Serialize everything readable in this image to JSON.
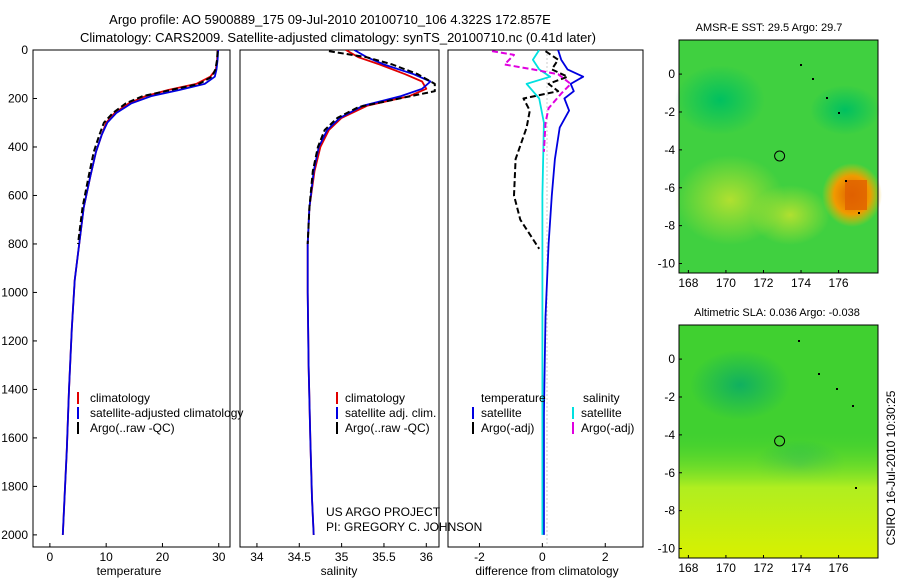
{
  "figure": {
    "title_line1": "Argo profile: AO 5900889_175 09-Jul-2010 20100710_106 4.322S 172.857E",
    "title_line2": "Climatology: CARS2009. Satellite-adjusted climatology: synTS_20100710.nc (0.41d later)",
    "project_line1": "US ARGO PROJECT",
    "project_line2": "PI: GREGORY C. JOHNSON",
    "side_stamp": "CSIRO 16-Jul-2010 10:30:25"
  },
  "colors": {
    "climatology": "#e00000",
    "satellite": "#0000e0",
    "argo": "#000000",
    "sat_diff_salinity": "#00e0e0",
    "argo_diff_salinity": "#e000e0"
  },
  "chart_data": [
    {
      "type": "line",
      "id": "temperature",
      "xlabel": "temperature",
      "ylabel": "",
      "xlim": [
        -3,
        32
      ],
      "ylim": [
        2050,
        0
      ],
      "xticks": [
        0,
        10,
        20,
        30
      ],
      "xtick_labels": [
        "0",
        "10",
        "20",
        "30"
      ],
      "yticks": [
        0,
        200,
        400,
        600,
        800,
        1000,
        1200,
        1400,
        1600,
        1800,
        2000
      ],
      "ytick_labels": [
        "0",
        "200",
        "400",
        "600",
        "800",
        "1000",
        "1200",
        "1400",
        "1600",
        "1800",
        "2000"
      ],
      "legend": [
        "climatology",
        "satellite-adjusted climatology",
        "Argo(..raw -QC)"
      ],
      "series": [
        {
          "name": "climatology",
          "color": "#e00000",
          "x": [
            29.8,
            29.7,
            29.5,
            28.5,
            26,
            21,
            17,
            14,
            11.5,
            10,
            9.2,
            8.2,
            7.2,
            6.0,
            5.2,
            4.4,
            3.9,
            3.4,
            3.0,
            2.6,
            2.3
          ],
          "y": [
            0,
            40,
            80,
            110,
            140,
            165,
            190,
            220,
            260,
            300,
            350,
            420,
            520,
            650,
            800,
            950,
            1150,
            1400,
            1650,
            1850,
            2000
          ]
        },
        {
          "name": "satellite-adjusted climatology",
          "color": "#0000e0",
          "x": [
            29.9,
            29.8,
            29.6,
            29.3,
            27.5,
            23,
            18,
            14.5,
            11.8,
            10.2,
            9.2,
            8.2,
            7.2,
            6.0,
            5.2,
            4.4,
            3.9,
            3.4,
            3.0,
            2.6,
            2.3
          ],
          "y": [
            0,
            40,
            80,
            110,
            140,
            165,
            190,
            220,
            260,
            300,
            350,
            420,
            520,
            650,
            800,
            950,
            1150,
            1400,
            1650,
            1850,
            2000
          ]
        },
        {
          "name": "Argo(..raw -QC)",
          "color": "#000000",
          "dash": true,
          "x": [
            29.8,
            29.7,
            29.4,
            28.8,
            26.5,
            21.5,
            16.5,
            13.5,
            11.2,
            9.6,
            8.8,
            7.8,
            6.9,
            5.8,
            5.0
          ],
          "y": [
            5,
            40,
            80,
            110,
            140,
            165,
            190,
            220,
            260,
            300,
            350,
            420,
            520,
            650,
            800
          ]
        }
      ]
    },
    {
      "type": "line",
      "id": "salinity",
      "xlabel": "salinity",
      "xlim": [
        33.8,
        36.15
      ],
      "ylim": [
        2050,
        0
      ],
      "xticks": [
        34,
        34.5,
        35,
        35.5,
        36
      ],
      "xtick_labels": [
        "34",
        "34.5",
        "35",
        "35.5",
        "36"
      ],
      "legend": [
        "climatology",
        "satellite adj. clim.",
        "Argo(..raw -QC)"
      ],
      "series": [
        {
          "name": "climatology",
          "color": "#e00000",
          "x": [
            35.05,
            35.2,
            35.45,
            35.75,
            35.95,
            36.0,
            35.8,
            35.3,
            35.0,
            34.85,
            34.75,
            34.68,
            34.62,
            34.6,
            34.6,
            34.61,
            34.63,
            34.65,
            34.67
          ],
          "y": [
            0,
            30,
            60,
            100,
            130,
            160,
            190,
            230,
            280,
            330,
            400,
            500,
            650,
            800,
            1000,
            1300,
            1600,
            1850,
            2000
          ]
        },
        {
          "name": "satellite adj. clim.",
          "color": "#0000e0",
          "x": [
            35.15,
            35.3,
            35.5,
            35.85,
            36.05,
            35.95,
            35.7,
            35.25,
            34.98,
            34.83,
            34.73,
            34.67,
            34.62,
            34.6,
            34.6,
            34.61,
            34.63,
            34.65,
            34.67
          ],
          "y": [
            0,
            30,
            60,
            100,
            130,
            160,
            190,
            230,
            280,
            330,
            400,
            500,
            650,
            800,
            1000,
            1300,
            1600,
            1850,
            2000
          ]
        },
        {
          "name": "Argo(..raw -QC)",
          "color": "#000000",
          "dash": true,
          "x": [
            34.85,
            35.3,
            35.6,
            35.9,
            36.1,
            36.1,
            35.75,
            35.2,
            34.95,
            34.8,
            34.72,
            34.66,
            34.62,
            34.6
          ],
          "y": [
            5,
            30,
            60,
            100,
            140,
            170,
            195,
            235,
            280,
            330,
            400,
            500,
            650,
            800
          ]
        }
      ]
    },
    {
      "type": "line",
      "id": "difference",
      "xlabel": "difference from climatology",
      "xlim": [
        -3,
        3.2
      ],
      "ylim": [
        2050,
        0
      ],
      "xticks": [
        -2,
        0,
        2
      ],
      "xtick_labels": [
        "-2",
        "0",
        "2"
      ],
      "legend_header_left": "temperature",
      "legend_header_right": "salinity",
      "legend_left": [
        "satellite",
        "Argo(-adj)"
      ],
      "legend_right": [
        "satellite",
        "Argo(-adj)"
      ],
      "series": [
        {
          "name": "temperature satellite",
          "color": "#0000e0",
          "x": [
            0.5,
            0.6,
            0.8,
            1.3,
            0.9,
            1.0,
            0.7,
            0.85,
            0.55,
            0.4,
            0.3,
            0.2,
            0.1,
            0.05,
            0.05
          ],
          "y": [
            0,
            40,
            80,
            110,
            140,
            170,
            200,
            250,
            320,
            450,
            600,
            800,
            1100,
            1500,
            2000
          ]
        },
        {
          "name": "temperature Argo(-adj)",
          "color": "#000000",
          "dash": true,
          "x": [
            0.1,
            0.5,
            0.3,
            0.8,
            0.2,
            0.5,
            -0.6,
            -0.4,
            -0.5,
            -0.85,
            -0.9,
            -0.7,
            -0.3,
            -0.1
          ],
          "y": [
            5,
            40,
            80,
            110,
            140,
            170,
            200,
            250,
            320,
            450,
            600,
            700,
            780,
            820
          ]
        },
        {
          "name": "salinity satellite",
          "color": "#00e0e0",
          "x": [
            -0.1,
            -0.3,
            -0.1,
            0.25,
            -0.5,
            -0.3,
            -0.1,
            0.05,
            0.0,
            0.0,
            0.0,
            0.0
          ],
          "y": [
            0,
            40,
            80,
            110,
            140,
            170,
            200,
            300,
            600,
            1000,
            1500,
            2000
          ]
        },
        {
          "name": "salinity Argo(-adj)",
          "color": "#e000e0",
          "dash": true,
          "x": [
            -1.6,
            -0.9,
            -1.2,
            -0.3,
            0.5,
            0.9,
            0.6,
            0.2,
            0.1,
            0.05
          ],
          "y": [
            5,
            20,
            60,
            80,
            100,
            140,
            180,
            240,
            300,
            420
          ]
        }
      ]
    },
    {
      "type": "heatmap",
      "id": "sst_map",
      "title": "AMSR-E SST: 29.5  Argo: 29.7",
      "xlim": [
        167.5,
        178.1
      ],
      "ylim": [
        -10.5,
        1.8
      ],
      "xticks": [
        168,
        170,
        172,
        174,
        176
      ],
      "xtick_labels": [
        "168",
        "170",
        "172",
        "174",
        "176"
      ],
      "yticks": [
        0,
        -2,
        -4,
        -6,
        -8,
        -10
      ],
      "ytick_labels": [
        "0",
        "-2",
        "-4",
        "-6",
        "-8",
        "-10"
      ],
      "marker": {
        "lon": 172.857,
        "lat": -4.322
      }
    },
    {
      "type": "heatmap",
      "id": "sla_map",
      "title": "Altimetric SLA: 0.036  Argo: -0.038",
      "xlim": [
        167.5,
        178.1
      ],
      "ylim": [
        -10.5,
        1.8
      ],
      "xticks": [
        168,
        170,
        172,
        174,
        176
      ],
      "xtick_labels": [
        "168",
        "170",
        "172",
        "174",
        "176"
      ],
      "yticks": [
        0,
        -2,
        -4,
        -6,
        -8,
        -10
      ],
      "ytick_labels": [
        "0",
        "-2",
        "-4",
        "-6",
        "-8",
        "-10"
      ],
      "marker": {
        "lon": 172.857,
        "lat": -4.322
      }
    }
  ]
}
